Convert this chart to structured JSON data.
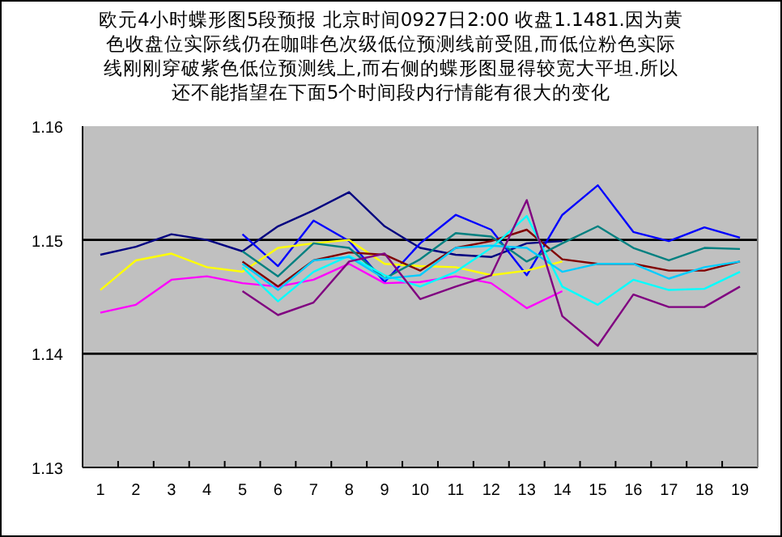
{
  "chart_data": {
    "type": "line",
    "title": "欧元4小时蝶形图5段预报 北京时间0927日2:00 收盘1.1481.因为黄色收盘位实际线仍在咖啡色次级低位预测线前受阻,而低位粉色实际线刚刚穿破紫色低位预测线上,而右侧的蝶形图显得较宽大平坦.所以还不能指望在下面5个时间段内行情能有很大的变化",
    "categories": [
      "1",
      "2",
      "3",
      "4",
      "5",
      "6",
      "7",
      "8",
      "9",
      "10",
      "11",
      "12",
      "13",
      "14",
      "15",
      "16",
      "17",
      "18",
      "19"
    ],
    "ylim": [
      1.13,
      1.16
    ],
    "yticks": [
      {
        "value": 1.13,
        "label": "1.13"
      },
      {
        "value": 1.14,
        "label": "1.14"
      },
      {
        "value": 1.15,
        "label": "1.15"
      },
      {
        "value": 1.16,
        "label": "1.16"
      }
    ],
    "grid": "y",
    "marker": "none",
    "line_style": "solid",
    "series": [
      {
        "color": "#000080",
        "values": [
          1.1487,
          1.1494,
          1.1505,
          1.15,
          1.149,
          1.1512,
          1.1526,
          1.1542,
          1.1512,
          1.1493,
          1.1487,
          1.1485,
          1.1497,
          1.1499,
          null,
          null,
          null,
          null,
          null
        ]
      },
      {
        "color": "#0000ff",
        "values": [
          null,
          null,
          null,
          null,
          1.1505,
          1.1477,
          1.1517,
          1.1499,
          1.1463,
          1.1497,
          1.1522,
          1.1509,
          1.1469,
          1.1522,
          1.1548,
          1.1507,
          1.1499,
          1.1511,
          1.1502
        ]
      },
      {
        "color": "#ffff00",
        "values": [
          1.1456,
          1.1482,
          1.1488,
          1.1476,
          1.1472,
          1.1493,
          1.1497,
          1.15,
          1.1479,
          1.1477,
          1.1476,
          1.1469,
          1.1473,
          1.1481,
          null,
          null,
          null,
          null,
          null
        ]
      },
      {
        "color": "#ff00ff",
        "values": [
          1.1436,
          1.1443,
          1.1465,
          1.1468,
          1.1462,
          1.1459,
          1.1465,
          1.1479,
          1.1462,
          1.1463,
          1.1468,
          1.1462,
          1.144,
          1.1455,
          null,
          null,
          null,
          null,
          null
        ]
      },
      {
        "color": "#800000",
        "values": [
          null,
          null,
          null,
          null,
          1.1481,
          1.1459,
          1.1482,
          1.1489,
          1.1487,
          1.1473,
          1.1493,
          1.1499,
          1.1509,
          1.1483,
          1.1479,
          1.1479,
          1.1473,
          1.1473,
          1.1481
        ]
      },
      {
        "color": "#008080",
        "values": [
          null,
          null,
          null,
          null,
          1.149,
          1.1468,
          1.1497,
          1.1493,
          1.1466,
          1.1483,
          1.1506,
          1.1503,
          1.1481,
          1.1497,
          1.1512,
          1.1493,
          1.1482,
          1.1493,
          1.1492
        ]
      },
      {
        "color": "#00ffff",
        "values": [
          null,
          null,
          null,
          null,
          1.1476,
          1.1446,
          1.1472,
          1.1486,
          1.1469,
          1.1459,
          1.1472,
          1.1493,
          1.1521,
          1.1459,
          1.1443,
          1.1465,
          1.1456,
          1.1457,
          1.1472
        ]
      },
      {
        "color": "#00ccff",
        "values": [
          null,
          null,
          null,
          null,
          1.1479,
          1.1456,
          1.1482,
          1.1485,
          1.1466,
          1.1469,
          1.1493,
          1.1495,
          1.1493,
          1.1472,
          1.1479,
          1.1479,
          1.1466,
          1.1476,
          1.1481
        ]
      },
      {
        "color": "#800080",
        "values": [
          null,
          null,
          null,
          null,
          1.1455,
          1.1434,
          1.1445,
          1.1481,
          1.1488,
          1.1448,
          1.1459,
          1.1469,
          1.1535,
          1.1433,
          1.1407,
          1.1452,
          1.1441,
          1.1441,
          1.1459
        ]
      }
    ]
  }
}
